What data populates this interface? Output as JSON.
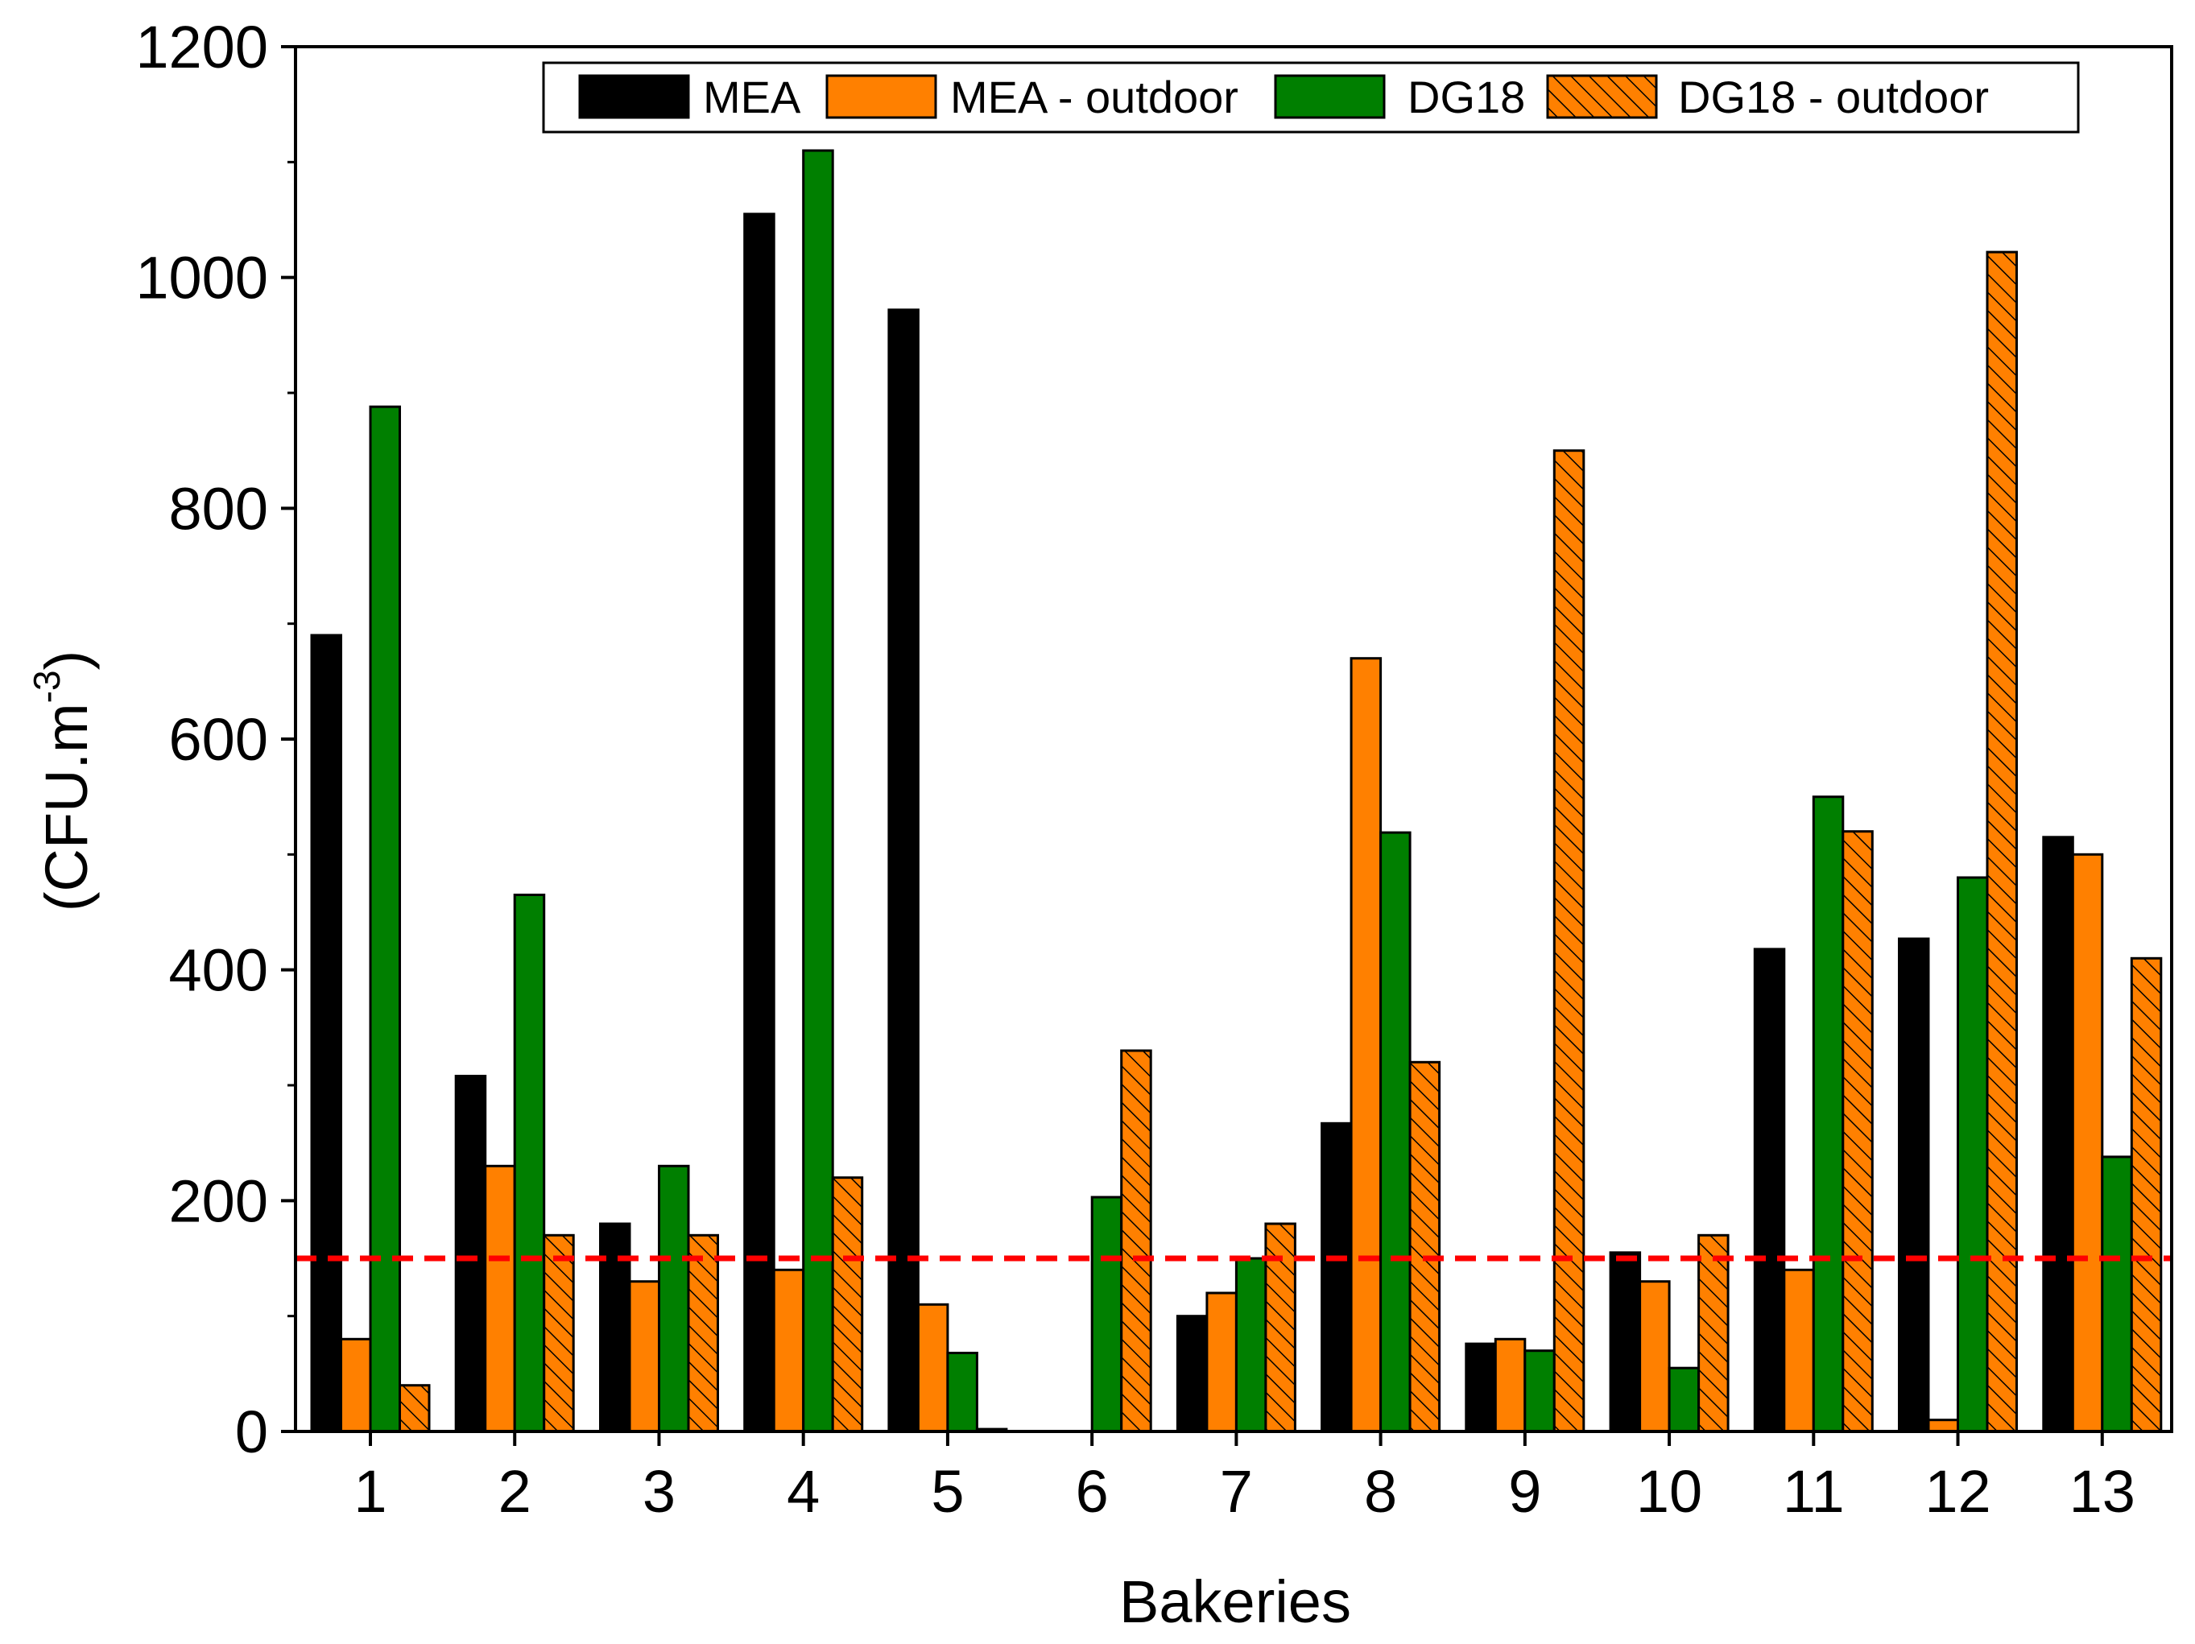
{
  "chart_data": {
    "type": "bar",
    "title": "",
    "xlabel": "Bakeries",
    "ylabel": "(CFU.m",
    "ylabel_superscript": "-3",
    "ylabel_close": ")",
    "ylim": [
      0,
      1200
    ],
    "yticks": [
      0,
      200,
      400,
      600,
      800,
      1000,
      1200
    ],
    "categories": [
      "1",
      "2",
      "3",
      "4",
      "5",
      "6",
      "7",
      "8",
      "9",
      "10",
      "11",
      "12",
      "13"
    ],
    "series": [
      {
        "name": "MEA",
        "color": "#000000",
        "pattern": "solid",
        "values": [
          690,
          308,
          180,
          1055,
          972,
          0,
          100,
          267,
          76,
          155,
          418,
          427,
          515
        ]
      },
      {
        "name": "MEA - outdoor",
        "color": "#ff8000",
        "pattern": "solid",
        "values": [
          80,
          230,
          130,
          140,
          110,
          0,
          120,
          670,
          80,
          130,
          140,
          10,
          500
        ]
      },
      {
        "name": "DG18",
        "color": "#007f00",
        "pattern": "solid",
        "values": [
          888,
          465,
          230,
          1110,
          68,
          203,
          150,
          519,
          70,
          55,
          550,
          480,
          238
        ]
      },
      {
        "name": "DG18 - outdoor",
        "color": "#ff8000",
        "pattern": "hatched",
        "values": [
          40,
          170,
          170,
          220,
          2,
          330,
          180,
          320,
          850,
          170,
          520,
          1022,
          410
        ]
      }
    ],
    "reference_line": {
      "value": 150,
      "color": "#ff0000",
      "style": "dashed"
    },
    "legend": {
      "placement": "top",
      "columns": 4
    },
    "grid": false
  }
}
